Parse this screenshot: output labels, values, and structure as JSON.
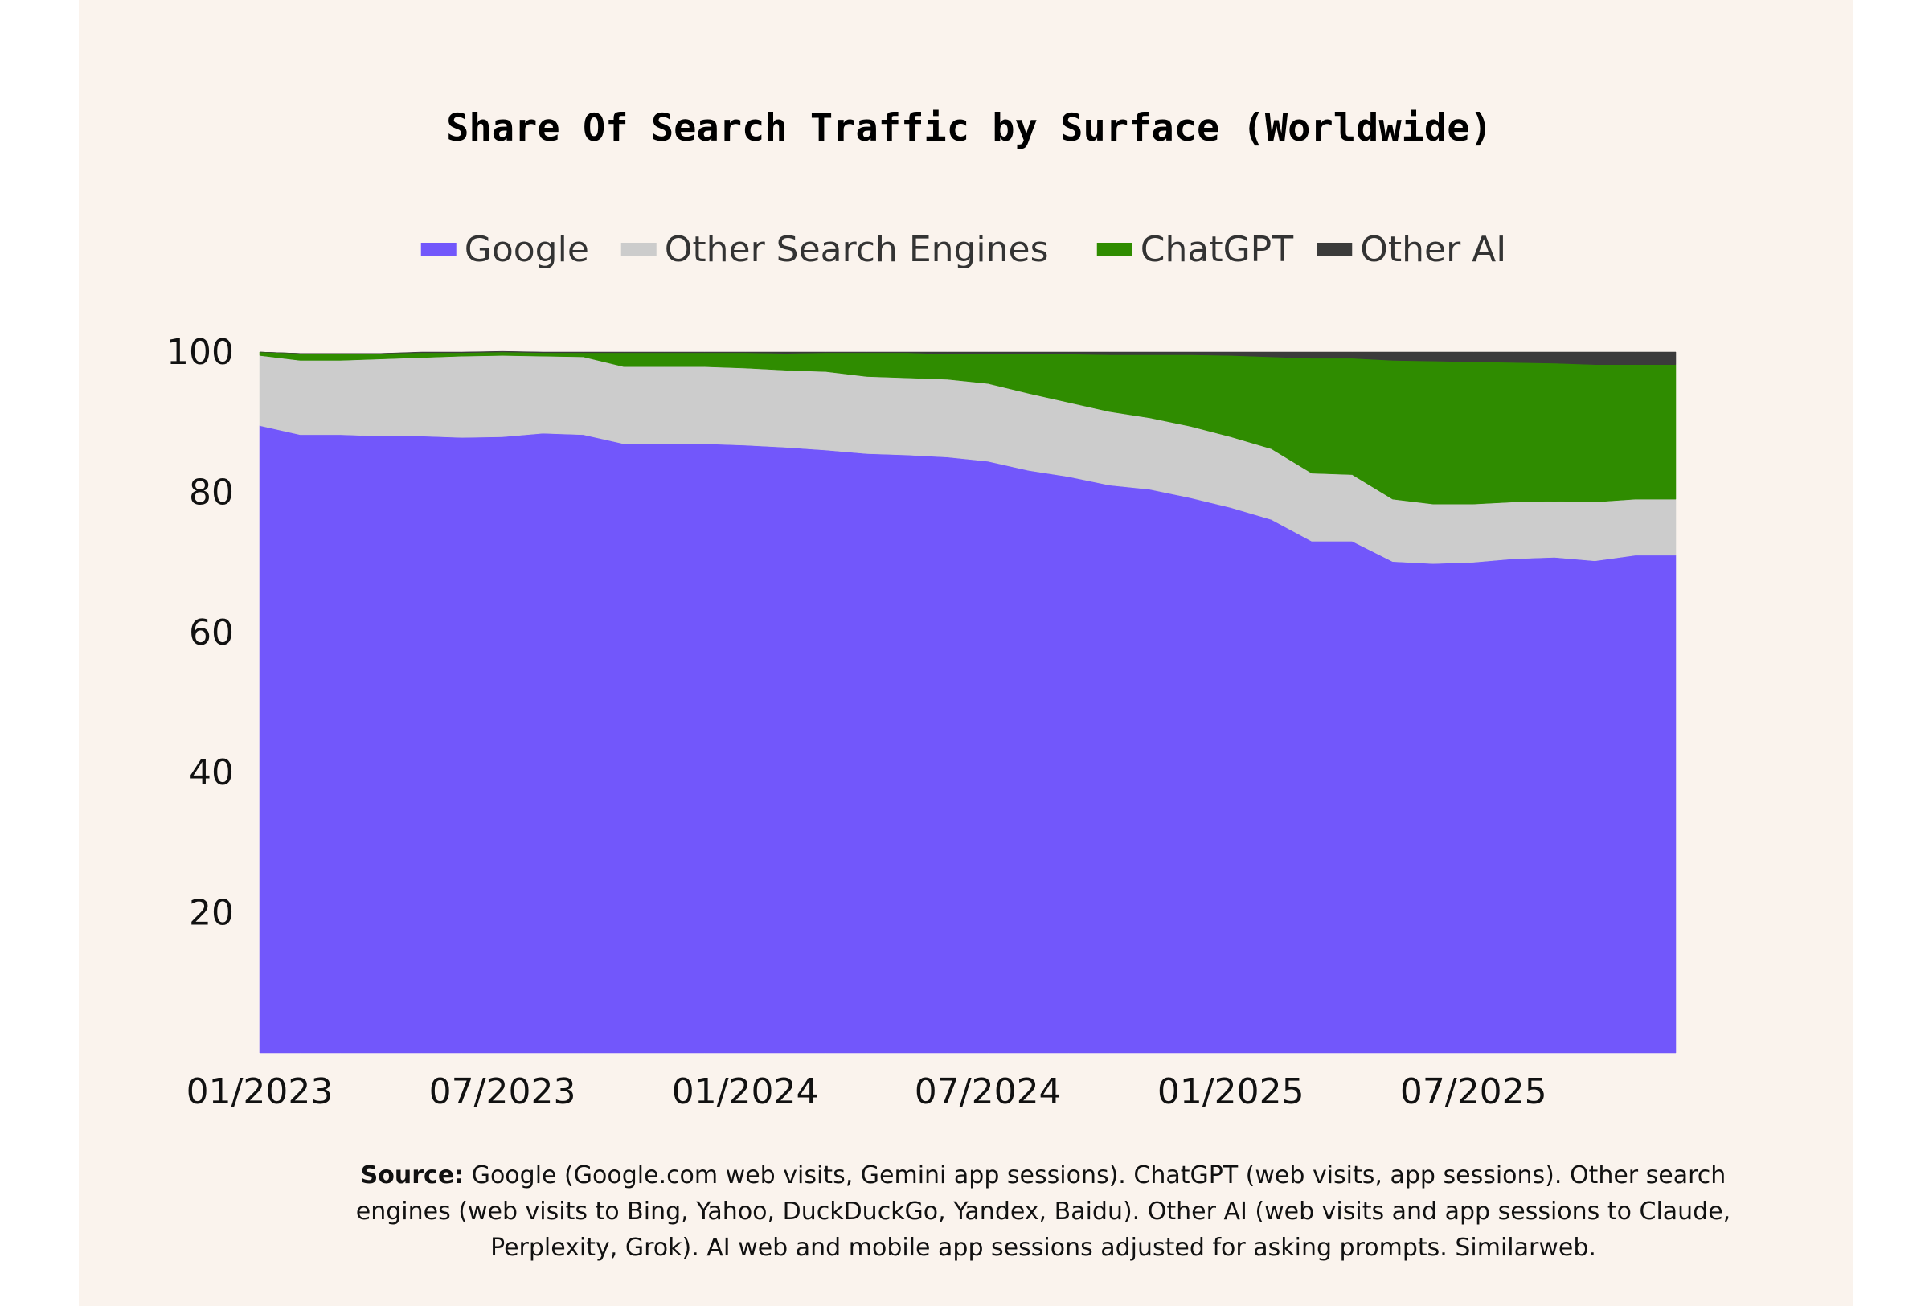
{
  "chart_data": {
    "type": "area",
    "title": "Share Of Search Traffic by Surface (Worldwide)",
    "stacked": true,
    "x": [
      "01/2023",
      "02/2023",
      "03/2023",
      "04/2023",
      "05/2023",
      "06/2023",
      "07/2023",
      "08/2023",
      "09/2023",
      "10/2023",
      "11/2023",
      "12/2023",
      "01/2024",
      "02/2024",
      "03/2024",
      "04/2024",
      "05/2024",
      "06/2024",
      "07/2024",
      "08/2024",
      "09/2024",
      "10/2024",
      "11/2024",
      "12/2024",
      "01/2025",
      "02/2025",
      "03/2025",
      "04/2025",
      "05/2025",
      "06/2025",
      "07/2025",
      "08/2025",
      "09/2025",
      "10/2025",
      "11/2025",
      "12/2025"
    ],
    "x_ticks": [
      "01/2023",
      "07/2023",
      "01/2024",
      "07/2024",
      "01/2025",
      "07/2025"
    ],
    "y_ticks": [
      20,
      40,
      60,
      80,
      100
    ],
    "ylim": [
      0,
      100
    ],
    "series": [
      {
        "name": "Google",
        "color": "#7257fb",
        "values": [
          89.5,
          88.2,
          88.2,
          88.0,
          88.0,
          87.8,
          87.9,
          88.4,
          88.2,
          86.9,
          86.9,
          86.9,
          86.7,
          86.4,
          86.0,
          85.5,
          85.3,
          85.0,
          84.4,
          83.1,
          82.2,
          81.0,
          80.4,
          79.2,
          77.8,
          76.1,
          73.0,
          73.0,
          70.1,
          69.8,
          70.0,
          70.5,
          70.7,
          70.2,
          71.0,
          71.0
        ]
      },
      {
        "name": "Other Search Engines",
        "color": "#cccccc",
        "values": [
          10.0,
          10.6,
          10.6,
          11.0,
          11.2,
          11.6,
          11.6,
          11.0,
          11.1,
          11.0,
          11.0,
          11.0,
          11.0,
          11.0,
          11.2,
          11.0,
          11.0,
          11.1,
          11.1,
          11.0,
          10.6,
          10.5,
          10.2,
          10.2,
          10.1,
          10.1,
          9.7,
          9.5,
          8.9,
          8.5,
          8.3,
          8.1,
          8.0,
          8.4,
          8.0,
          8.0
        ]
      },
      {
        "name": "ChatGPT",
        "color": "#2f8c00",
        "values": [
          0.5,
          1.0,
          1.0,
          0.8,
          0.7,
          0.5,
          0.5,
          0.5,
          0.6,
          2.0,
          2.0,
          2.0,
          2.2,
          2.4,
          2.7,
          3.4,
          3.6,
          3.6,
          4.2,
          5.6,
          6.9,
          8.1,
          9.0,
          10.2,
          11.6,
          13.1,
          16.4,
          16.6,
          19.8,
          20.4,
          20.3,
          19.9,
          19.7,
          19.6,
          19.2,
          19.2
        ]
      },
      {
        "name": "Other AI",
        "color": "#3b3b3b",
        "values": [
          0,
          0,
          0,
          0,
          0.1,
          0.1,
          0.1,
          0.1,
          0.1,
          0.1,
          0.1,
          0.1,
          0.1,
          0.2,
          0.1,
          0.1,
          0.1,
          0.3,
          0.3,
          0.3,
          0.3,
          0.4,
          0.4,
          0.4,
          0.5,
          0.7,
          0.9,
          0.9,
          1.2,
          1.3,
          1.4,
          1.5,
          1.6,
          1.8,
          1.8,
          1.8
        ]
      }
    ]
  },
  "source": {
    "label": "Source:",
    "text": " Google (Google.com web visits, Gemini app sessions). ChatGPT (web visits, app sessions). Other search engines (web visits to Bing, Yahoo, DuckDuckGo, Yandex, Baidu). Other AI (web visits and app sessions to Claude, Perplexity, Grok). AI web and mobile app sessions adjusted for asking prompts. Similarweb."
  }
}
